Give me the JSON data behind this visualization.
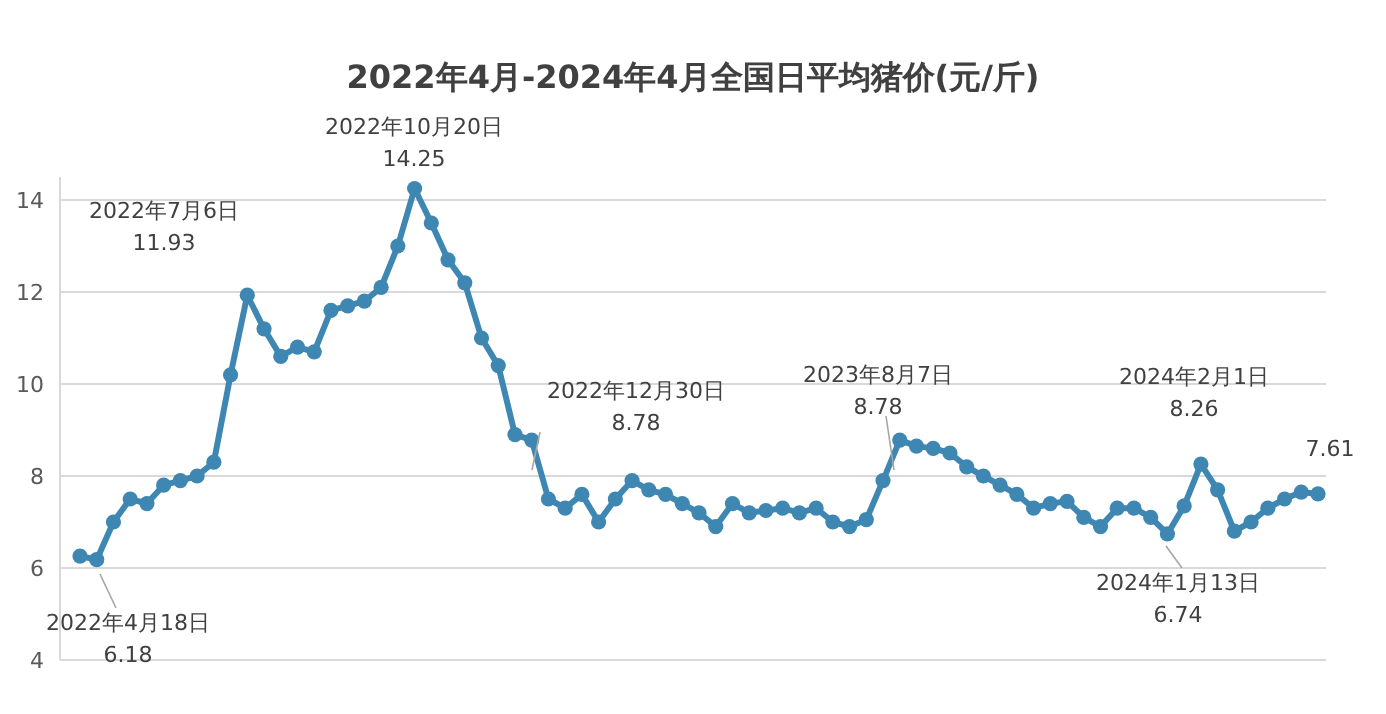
{
  "chart_data": {
    "type": "line",
    "title": "2022年4月-2024年4月全国日平均猪价(元/斤)",
    "categories": [
      null,
      null,
      null,
      null,
      null,
      null,
      null,
      null,
      null,
      null,
      null,
      null,
      null,
      null,
      null,
      null,
      null,
      null,
      null,
      null,
      null,
      null,
      null,
      null,
      null,
      null,
      null,
      null,
      null,
      null,
      null,
      null,
      null,
      null,
      null,
      null,
      null,
      null,
      null,
      null,
      null,
      null,
      null,
      null,
      null,
      null,
      null,
      null,
      null,
      null,
      null,
      null,
      null,
      null,
      null,
      null,
      null,
      null,
      null,
      null,
      null,
      null,
      null,
      null,
      null,
      null,
      null,
      null,
      null,
      null,
      null,
      null,
      null,
      null,
      null
    ],
    "series": [
      {
        "color": "#3f87b3",
        "values": [
          6.26,
          6.18,
          7.0,
          7.5,
          7.4,
          7.8,
          7.9,
          8.0,
          8.3,
          10.2,
          11.93,
          11.2,
          10.6,
          10.8,
          10.7,
          11.6,
          11.7,
          11.8,
          12.1,
          13.0,
          14.25,
          13.5,
          12.7,
          12.2,
          11.0,
          10.4,
          8.9,
          8.78,
          7.5,
          7.3,
          7.6,
          7.0,
          7.5,
          7.9,
          7.7,
          7.6,
          7.4,
          7.2,
          6.9,
          7.4,
          7.2,
          7.25,
          7.3,
          7.2,
          7.3,
          7.0,
          6.9,
          7.05,
          7.9,
          8.78,
          8.65,
          8.6,
          8.5,
          8.2,
          8.0,
          7.8,
          7.6,
          7.3,
          7.4,
          7.45,
          7.1,
          6.9,
          7.3,
          7.3,
          7.1,
          6.74,
          7.35,
          8.26,
          7.7,
          6.8,
          7.0,
          7.3,
          7.5,
          7.65,
          7.61
        ]
      }
    ],
    "ylim": [
      4,
      14.5
    ],
    "yticks": [
      4,
      6,
      8,
      10,
      12,
      14
    ],
    "grid": "y",
    "tick_labels": "y",
    "marker": "circle",
    "annotations": [
      "2022年4月18日\n6.18",
      "2022年7月6日\n11.93",
      "2022年10月20日\n14.25",
      "2022年12月30日\n8.78",
      "2023年8月7日\n8.78",
      "2024年1月13日\n6.74",
      "2024年2月1日\n8.26",
      "7.61"
    ]
  }
}
